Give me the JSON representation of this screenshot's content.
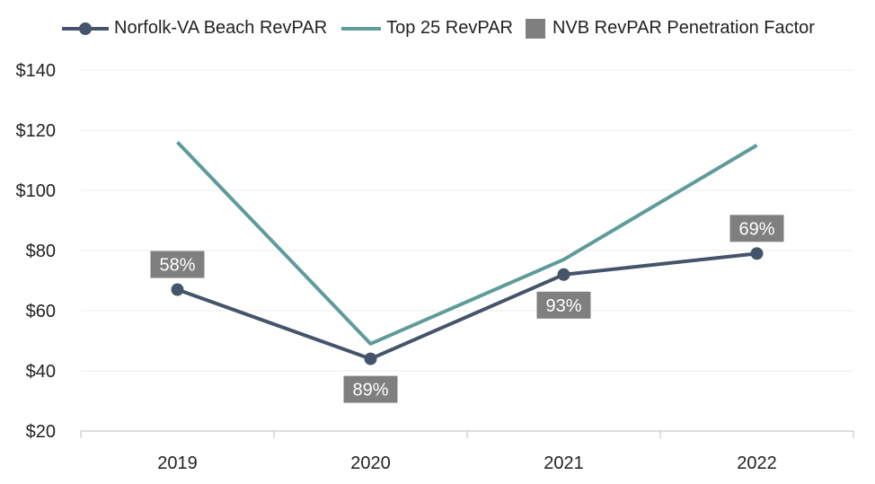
{
  "chart_data": {
    "type": "line",
    "categories": [
      "2019",
      "2020",
      "2021",
      "2022"
    ],
    "series": [
      {
        "name": "Norfolk-VA Beach RevPAR",
        "values": [
          67,
          44,
          72,
          79
        ],
        "color": "#44546A",
        "markers": true
      },
      {
        "name": "Top 25 RevPAR",
        "values": [
          116,
          49,
          77,
          115
        ],
        "color": "#5F9B9A",
        "markers": false
      }
    ],
    "penetration": {
      "name": "NVB RevPAR Penetration Factor",
      "color": "#7F7F7F",
      "labels": [
        "58%",
        "89%",
        "93%",
        "69%"
      ],
      "placement": [
        "above",
        "below",
        "below",
        "above"
      ]
    },
    "yticks": [
      "$20",
      "$40",
      "$60",
      "$80",
      "$100",
      "$120",
      "$140"
    ],
    "ylim": [
      20,
      140
    ],
    "grid": true,
    "legend": "top"
  }
}
